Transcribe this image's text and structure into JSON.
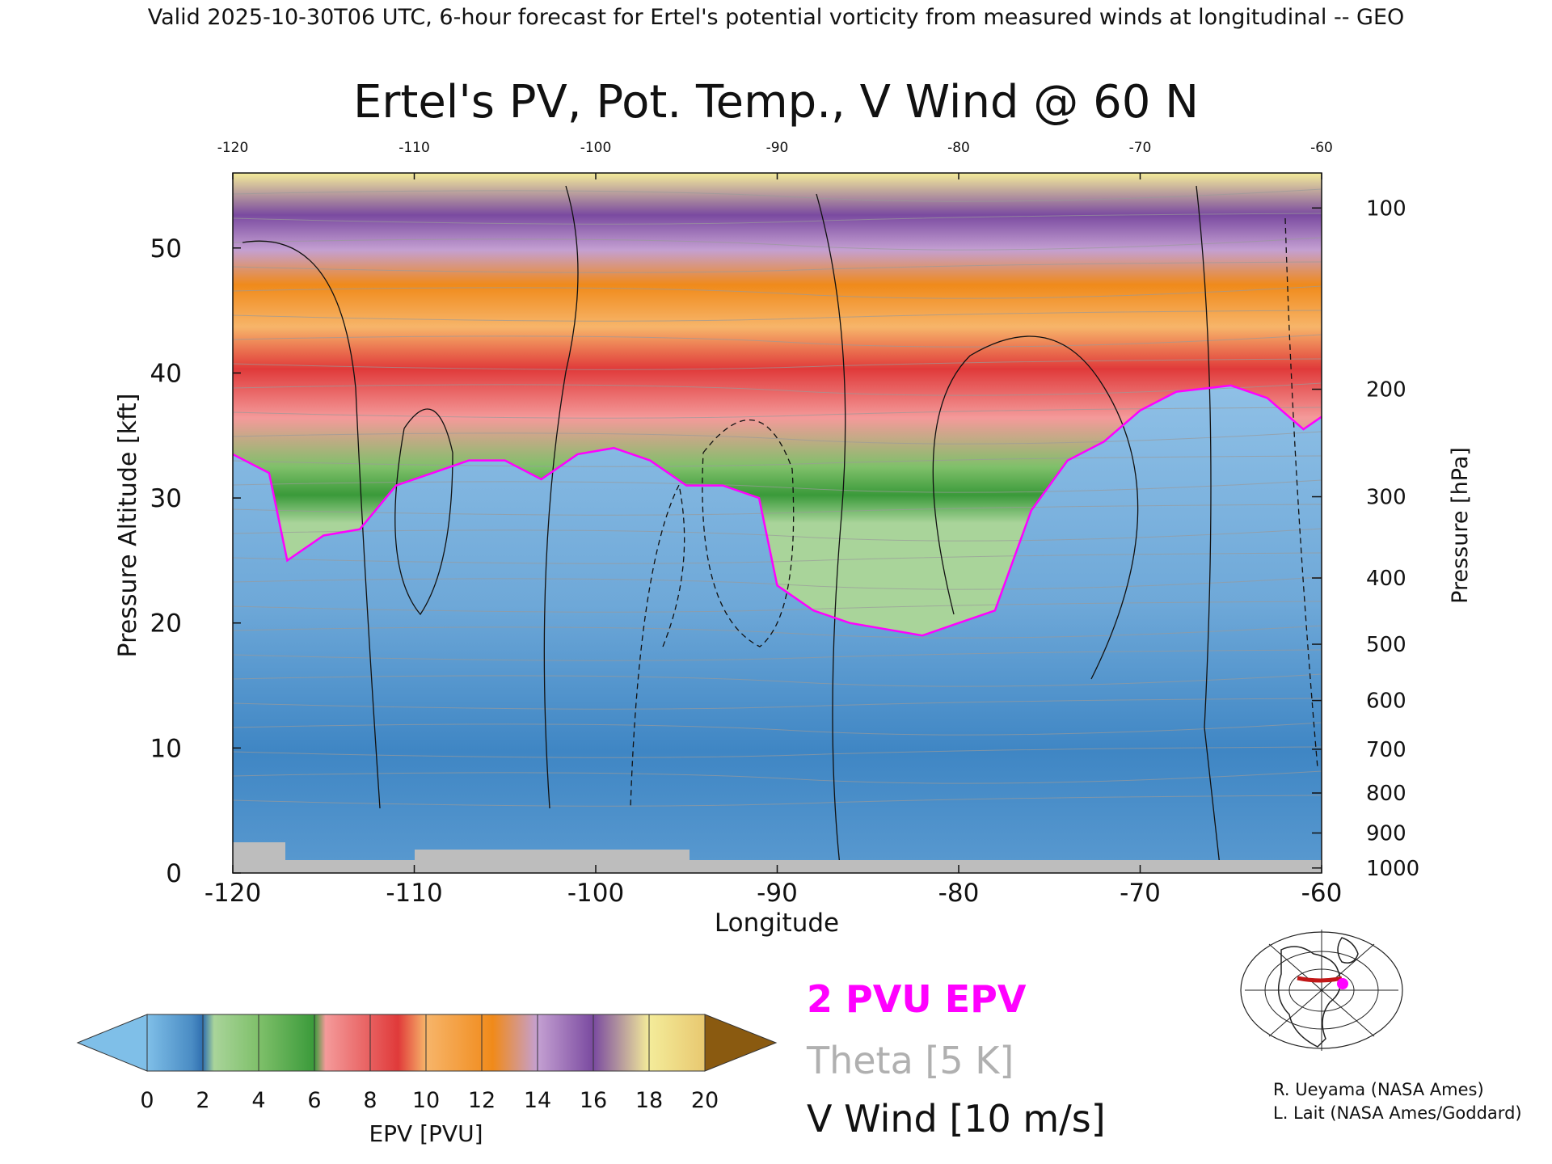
{
  "header": {
    "valid_line": "Valid 2025-10-30T06 UTC, 6-hour forecast for Ertel's potential vorticity from measured winds at longitudinal -- GEO"
  },
  "chart_data": {
    "type": "heatmap",
    "title": "Ertel's PV, Pot. Temp., V Wind @ 60 N",
    "xlabel": "Longitude",
    "ylabel_left": "Pressure Altitude [kft]",
    "ylabel_right": "Pressure [hPa]",
    "xlim": [
      -120,
      -60
    ],
    "ylim_kft": [
      0,
      56
    ],
    "x_ticks": [
      "-120",
      "-110",
      "-100",
      "-90",
      "-80",
      "-70",
      "-60"
    ],
    "top_ticks": [
      "-120",
      "-110",
      "-100",
      "-90",
      "-80",
      "-70",
      "-60"
    ],
    "y_ticks_kft": [
      "0",
      "10",
      "20",
      "30",
      "40",
      "50"
    ],
    "pressure_ticks": [
      {
        "label": "100",
        "kft": 53.2
      },
      {
        "label": "200",
        "kft": 38.7
      },
      {
        "label": "300",
        "kft": 30.1
      },
      {
        "label": "400",
        "kft": 23.6
      },
      {
        "label": "500",
        "kft": 18.3
      },
      {
        "label": "600",
        "kft": 13.8
      },
      {
        "label": "700",
        "kft": 9.9
      },
      {
        "label": "800",
        "kft": 6.4
      },
      {
        "label": "900",
        "kft": 3.2
      },
      {
        "label": "1000",
        "kft": 0.4
      }
    ],
    "colorbar": {
      "label": "EPV [PVU]",
      "ticks": [
        "0",
        "2",
        "4",
        "6",
        "8",
        "10",
        "12",
        "14",
        "16",
        "18",
        "20"
      ],
      "colors": [
        "#7fbfe8",
        "#4a8cc4",
        "#2f6fb0",
        "#a9d49a",
        "#7fc06a",
        "#3a9a3a",
        "#f49a9a",
        "#e03a3a",
        "#f7b56a",
        "#f08a1a",
        "#c4a0d2",
        "#7a4aa0",
        "#f4ec9a",
        "#8a5a10"
      ]
    },
    "tropopause_2pvu_kft": [
      {
        "x": -120,
        "y": 33.5
      },
      {
        "x": -118,
        "y": 32
      },
      {
        "x": -117,
        "y": 25
      },
      {
        "x": -115,
        "y": 27
      },
      {
        "x": -113,
        "y": 27.5
      },
      {
        "x": -111,
        "y": 31
      },
      {
        "x": -109,
        "y": 32
      },
      {
        "x": -107,
        "y": 33
      },
      {
        "x": -105,
        "y": 33
      },
      {
        "x": -103,
        "y": 31.5
      },
      {
        "x": -101,
        "y": 33.5
      },
      {
        "x": -99,
        "y": 34
      },
      {
        "x": -97,
        "y": 33
      },
      {
        "x": -95,
        "y": 31
      },
      {
        "x": -93,
        "y": 31
      },
      {
        "x": -91,
        "y": 30
      },
      {
        "x": -90,
        "y": 23
      },
      {
        "x": -88,
        "y": 21
      },
      {
        "x": -86,
        "y": 20
      },
      {
        "x": -84,
        "y": 19.5
      },
      {
        "x": -82,
        "y": 19
      },
      {
        "x": -80,
        "y": 20
      },
      {
        "x": -78,
        "y": 21
      },
      {
        "x": -76,
        "y": 29
      },
      {
        "x": -74,
        "y": 33
      },
      {
        "x": -72,
        "y": 34.5
      },
      {
        "x": -70,
        "y": 37
      },
      {
        "x": -68,
        "y": 38.5
      },
      {
        "x": -65,
        "y": 39
      },
      {
        "x": -63,
        "y": 38
      },
      {
        "x": -61,
        "y": 35.5
      },
      {
        "x": -60,
        "y": 36.5
      }
    ],
    "legend": {
      "epv_label": "2 PVU EPV",
      "epv_color": "#ff00ff",
      "theta_label": "Theta [5 K]",
      "theta_color": "#b0b0b0",
      "wind_label": "V Wind [10 m/s]",
      "wind_color": "#111111"
    },
    "credits": [
      "R. Ueyama (NASA Ames)",
      "L. Lait (NASA Ames/Goddard)"
    ]
  }
}
